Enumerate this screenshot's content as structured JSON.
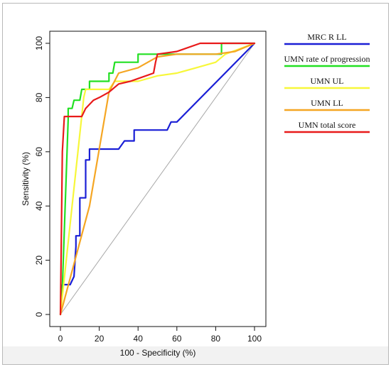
{
  "chart_data": {
    "type": "line",
    "xlabel": "100 - Specificity (%)",
    "ylabel": "Sensitivity (%)",
    "xlim": [
      0,
      100
    ],
    "ylim": [
      0,
      100
    ],
    "xticks": [
      "0",
      "20",
      "40",
      "60",
      "80",
      "100"
    ],
    "yticks": [
      "0",
      "20",
      "40",
      "60",
      "80",
      "100"
    ],
    "legend_position": "right",
    "series": [
      {
        "name": "MRC R LL",
        "color": "#1a1fd6",
        "x": [
          0,
          1,
          4,
          5,
          7,
          8,
          8,
          10,
          10,
          13,
          13,
          15,
          15,
          30,
          33,
          36,
          38,
          38,
          55,
          57,
          60,
          100
        ],
        "y": [
          0,
          11,
          11,
          11,
          14,
          25,
          29,
          29,
          43,
          43,
          57,
          57,
          61,
          61,
          64,
          64,
          64,
          68,
          68,
          71,
          71,
          100
        ]
      },
      {
        "name": "UMN rate of progression",
        "color": "#22e022",
        "x": [
          0,
          1,
          4,
          4,
          6,
          7,
          8,
          10,
          11,
          11,
          15,
          15,
          25,
          25,
          27,
          28,
          28,
          40,
          40,
          83,
          83,
          100
        ],
        "y": [
          0,
          10,
          72,
          76,
          76,
          79,
          79,
          79,
          83,
          83,
          83,
          86,
          86,
          89,
          89,
          93,
          93,
          93,
          96,
          96,
          100,
          100
        ]
      },
      {
        "name": "UMN UL",
        "color": "#f7f73a",
        "x": [
          0,
          12,
          13,
          25,
          28,
          30,
          40,
          50,
          60,
          70,
          80,
          85,
          100
        ],
        "y": [
          0,
          80,
          83,
          83,
          86,
          86,
          86,
          88,
          89,
          91,
          93,
          96,
          100
        ]
      },
      {
        "name": "UMN LL",
        "color": "#f5a623",
        "x": [
          0,
          15,
          25,
          30,
          40,
          50,
          60,
          70,
          80,
          90,
          100
        ],
        "y": [
          0,
          40,
          82,
          89,
          91,
          95,
          96,
          96,
          96,
          97,
          100
        ]
      },
      {
        "name": "UMN total score",
        "color": "#e81a1a",
        "x": [
          0,
          1,
          2,
          11,
          13,
          17,
          20,
          25,
          30,
          36,
          40,
          48,
          49,
          50,
          60,
          72,
          100
        ],
        "y": [
          0,
          60,
          73,
          73,
          76,
          79,
          80,
          82,
          85,
          86,
          87,
          89,
          93,
          96,
          97,
          100,
          100
        ]
      }
    ],
    "diagonal_reference": true
  }
}
